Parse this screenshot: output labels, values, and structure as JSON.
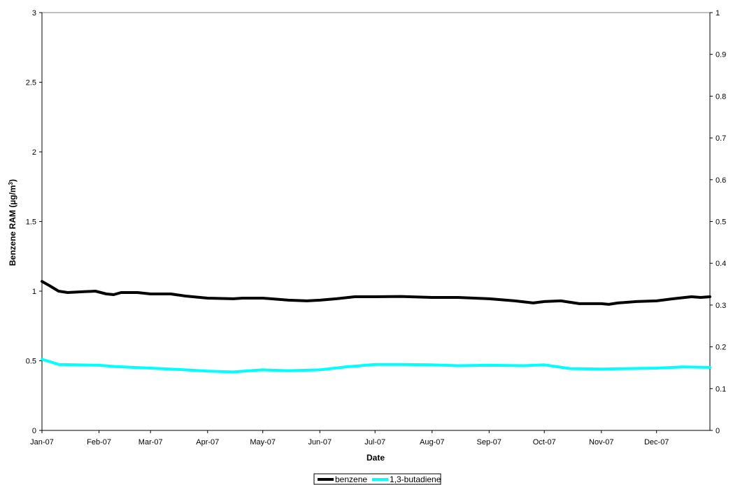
{
  "chart_data": {
    "type": "line",
    "xlabel": "Date",
    "ylabel": "Benzene RAM (µg/m",
    "ylabel_sup": "3",
    "ylabel_tail": ")",
    "ylim_left": [
      0,
      3
    ],
    "yticks_left": [
      0,
      0.5,
      1,
      1.5,
      2,
      2.5,
      3
    ],
    "ylim_right": [
      0,
      1
    ],
    "yticks_right": [
      0,
      0.1,
      0.2,
      0.3,
      0.4,
      0.5,
      0.6,
      0.7,
      0.8,
      0.9,
      1
    ],
    "xlim": [
      "2007-01-01",
      "2007-12-30"
    ],
    "xticks": [
      {
        "date": "2007-01-01",
        "label": "Jan-07"
      },
      {
        "date": "2007-02-01",
        "label": "Feb-07"
      },
      {
        "date": "2007-03-01",
        "label": "Mar-07"
      },
      {
        "date": "2007-04-01",
        "label": "Apr-07"
      },
      {
        "date": "2007-05-01",
        "label": "May-07"
      },
      {
        "date": "2007-06-01",
        "label": "Jun-07"
      },
      {
        "date": "2007-07-01",
        "label": "Jul-07"
      },
      {
        "date": "2007-08-01",
        "label": "Aug-07"
      },
      {
        "date": "2007-09-01",
        "label": "Sep-07"
      },
      {
        "date": "2007-10-01",
        "label": "Oct-07"
      },
      {
        "date": "2007-11-01",
        "label": "Nov-07"
      },
      {
        "date": "2007-12-01",
        "label": "Dec-07"
      }
    ],
    "grid": false,
    "legend_position": "bottom-center",
    "series": [
      {
        "name": "benzene",
        "axis": "left",
        "color": "#000000",
        "points": [
          [
            "2007-01-01",
            1.07
          ],
          [
            "2007-01-05",
            1.04
          ],
          [
            "2007-01-10",
            1.0
          ],
          [
            "2007-01-15",
            0.99
          ],
          [
            "2007-01-22",
            0.995
          ],
          [
            "2007-01-30",
            1.0
          ],
          [
            "2007-02-05",
            0.98
          ],
          [
            "2007-02-09",
            0.975
          ],
          [
            "2007-02-13",
            0.99
          ],
          [
            "2007-02-22",
            0.99
          ],
          [
            "2007-03-01",
            0.98
          ],
          [
            "2007-03-12",
            0.98
          ],
          [
            "2007-03-20",
            0.965
          ],
          [
            "2007-04-01",
            0.95
          ],
          [
            "2007-04-15",
            0.945
          ],
          [
            "2007-04-20",
            0.95
          ],
          [
            "2007-05-01",
            0.95
          ],
          [
            "2007-05-15",
            0.935
          ],
          [
            "2007-05-25",
            0.93
          ],
          [
            "2007-06-01",
            0.935
          ],
          [
            "2007-06-10",
            0.945
          ],
          [
            "2007-06-20",
            0.96
          ],
          [
            "2007-07-01",
            0.96
          ],
          [
            "2007-07-15",
            0.962
          ],
          [
            "2007-08-01",
            0.955
          ],
          [
            "2007-08-15",
            0.955
          ],
          [
            "2007-09-01",
            0.945
          ],
          [
            "2007-09-15",
            0.93
          ],
          [
            "2007-09-25",
            0.915
          ],
          [
            "2007-10-01",
            0.925
          ],
          [
            "2007-10-10",
            0.93
          ],
          [
            "2007-10-20",
            0.91
          ],
          [
            "2007-11-01",
            0.91
          ],
          [
            "2007-11-05",
            0.905
          ],
          [
            "2007-11-10",
            0.915
          ],
          [
            "2007-11-20",
            0.925
          ],
          [
            "2007-12-01",
            0.93
          ],
          [
            "2007-12-10",
            0.945
          ],
          [
            "2007-12-20",
            0.96
          ],
          [
            "2007-12-25",
            0.955
          ],
          [
            "2007-12-30",
            0.96
          ]
        ]
      },
      {
        "name": "1,3-butadiene",
        "axis": "right",
        "color": "#00FFFF",
        "points": [
          [
            "2007-01-01",
            0.17
          ],
          [
            "2007-01-05",
            0.165
          ],
          [
            "2007-01-10",
            0.158
          ],
          [
            "2007-02-01",
            0.156
          ],
          [
            "2007-02-10",
            0.153
          ],
          [
            "2007-03-01",
            0.149
          ],
          [
            "2007-03-20",
            0.145
          ],
          [
            "2007-04-01",
            0.142
          ],
          [
            "2007-04-15",
            0.14
          ],
          [
            "2007-05-01",
            0.145
          ],
          [
            "2007-05-15",
            0.143
          ],
          [
            "2007-06-01",
            0.145
          ],
          [
            "2007-06-15",
            0.152
          ],
          [
            "2007-07-01",
            0.158
          ],
          [
            "2007-07-15",
            0.158
          ],
          [
            "2007-08-01",
            0.157
          ],
          [
            "2007-08-15",
            0.155
          ],
          [
            "2007-09-01",
            0.156
          ],
          [
            "2007-09-20",
            0.155
          ],
          [
            "2007-10-01",
            0.157
          ],
          [
            "2007-10-15",
            0.148
          ],
          [
            "2007-11-01",
            0.147
          ],
          [
            "2007-11-15",
            0.148
          ],
          [
            "2007-12-01",
            0.149
          ],
          [
            "2007-12-15",
            0.152
          ],
          [
            "2007-12-30",
            0.151
          ]
        ]
      }
    ]
  }
}
